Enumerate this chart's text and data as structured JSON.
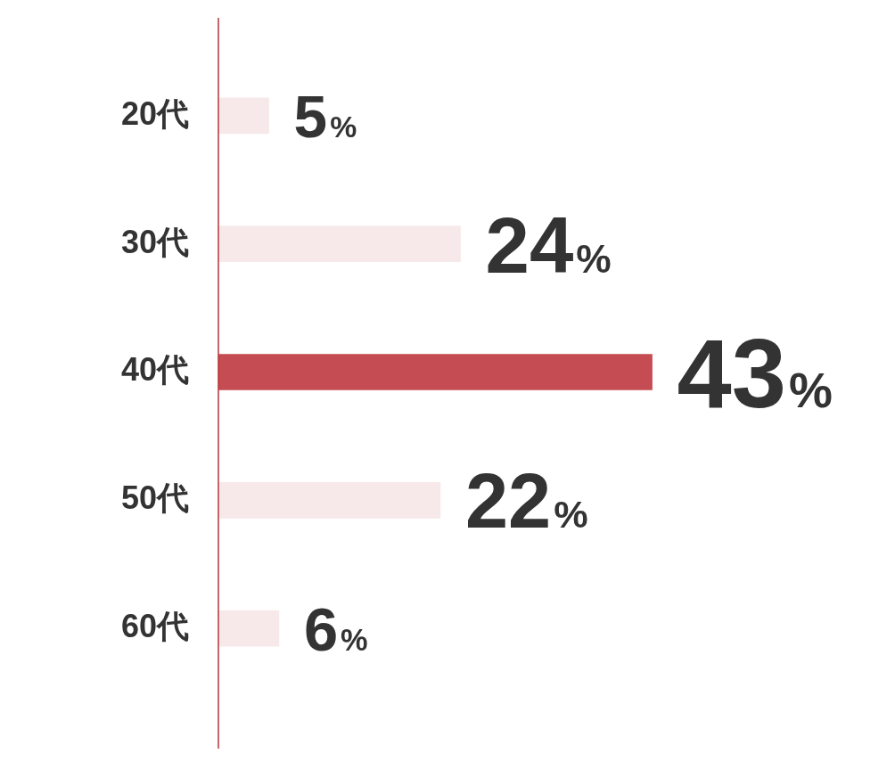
{
  "chart_data": {
    "type": "bar",
    "orientation": "horizontal",
    "categories": [
      "20代",
      "30代",
      "40代",
      "50代",
      "60代"
    ],
    "values": [
      5,
      24,
      43,
      22,
      6
    ],
    "colors": [
      "#f7e9e9",
      "#f7e9e9",
      "#c44c52",
      "#f7e9e9",
      "#f7e9e9"
    ],
    "value_labels": [
      "5%",
      "24%",
      "43%",
      "22%",
      "6%"
    ],
    "grid": false,
    "legend": false
  }
}
